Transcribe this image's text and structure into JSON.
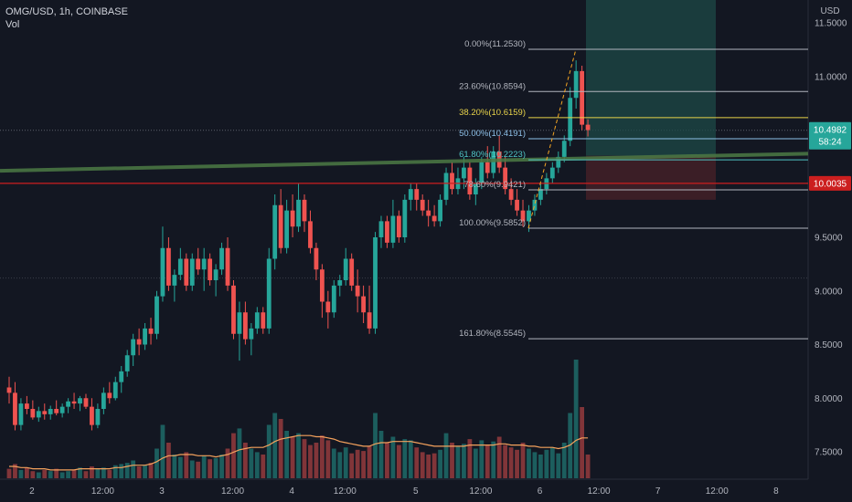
{
  "header": {
    "symbol": "OMG/USD",
    "timeframe": "1h",
    "exchange": "COINBASE",
    "indicator": "Vol"
  },
  "price_axis": {
    "currency": "USD",
    "ticks": [
      "11.5000",
      "11.0000",
      "10.5000",
      "10.0000",
      "9.5000",
      "9.0000",
      "8.5000",
      "8.0000",
      "7.5000"
    ]
  },
  "time_axis": {
    "ticks": [
      "2",
      "12:00",
      "3",
      "12:00",
      "4",
      "12:00",
      "5",
      "12:00",
      "6",
      "12:00",
      "7",
      "12:00",
      "8"
    ]
  },
  "fib_levels": [
    {
      "label": "0.00%(11.2530)",
      "price": 11.253,
      "color": "#b2b5be"
    },
    {
      "label": "23.60%(10.8594)",
      "price": 10.8594,
      "color": "#b2b5be"
    },
    {
      "label": "38.20%(10.6159)",
      "price": 10.6159,
      "color": "#e8d34a"
    },
    {
      "label": "50.00%(10.4191)",
      "price": 10.4191,
      "color": "#8ec0e8"
    },
    {
      "label": "61.80%(10.2223)",
      "price": 10.2223,
      "color": "#4fc3c3"
    },
    {
      "label": "78.60%(9.9421)",
      "price": 9.9421,
      "color": "#b2b5be"
    },
    {
      "label": "100.00%(9.5852)",
      "price": 9.5852,
      "color": "#b2b5be"
    },
    {
      "label": "161.80%(8.5545)",
      "price": 8.5545,
      "color": "#b2b5be"
    }
  ],
  "price_tags": {
    "current": {
      "price": "10.4982",
      "countdown": "58:24",
      "color": "#26a69a"
    },
    "support": {
      "price": "10.0035",
      "color": "#cc1f1f"
    }
  },
  "colors": {
    "up": "#26a69a",
    "down": "#ef5350",
    "volume_ma": "#f5a25d",
    "trend_line": "#4c7a45",
    "support_line": "#cc1f1f",
    "target_zone": "#1e4a47",
    "stop_zone": "#4a2228"
  },
  "chart_data": {
    "type": "candlestick",
    "interval": "1h",
    "symbol": "OMG/USD",
    "exchange": "COINBASE",
    "x_ticks": [
      "2",
      "12:00",
      "3",
      "12:00",
      "4",
      "12:00",
      "5",
      "12:00",
      "6",
      "12:00",
      "7",
      "12:00",
      "8"
    ],
    "y_ticks": [
      11.5,
      11.0,
      10.5,
      10.0,
      9.5,
      9.0,
      8.5,
      8.0,
      7.5
    ],
    "ylim": [
      7.22,
      11.65
    ],
    "last_price": 10.4982,
    "horizontal_levels": {
      "support": 10.0035
    },
    "trend_line": {
      "from": {
        "x": 0,
        "y": 10.12
      },
      "to": {
        "x": 148,
        "y": 10.28
      }
    },
    "fib_retracement": {
      "from_price": 9.5852,
      "to_price": 11.253
    },
    "position_zones": {
      "entry": 10.26,
      "target": 11.85,
      "stop": 9.85
    },
    "ohlc": [
      [
        8.1,
        8.2,
        7.95,
        8.05
      ],
      [
        8.05,
        8.15,
        7.7,
        7.75
      ],
      [
        7.75,
        8.0,
        7.7,
        7.95
      ],
      [
        7.95,
        8.02,
        7.85,
        7.9
      ],
      [
        7.9,
        7.98,
        7.8,
        7.82
      ],
      [
        7.82,
        7.92,
        7.78,
        7.88
      ],
      [
        7.88,
        7.95,
        7.8,
        7.85
      ],
      [
        7.85,
        7.93,
        7.8,
        7.9
      ],
      [
        7.9,
        7.98,
        7.84,
        7.86
      ],
      [
        7.86,
        7.95,
        7.82,
        7.92
      ],
      [
        7.92,
        8.0,
        7.86,
        7.97
      ],
      [
        7.97,
        8.05,
        7.9,
        7.95
      ],
      [
        7.95,
        8.02,
        7.88,
        8.0
      ],
      [
        8.0,
        8.04,
        7.9,
        7.92
      ],
      [
        7.92,
        8.0,
        7.7,
        7.75
      ],
      [
        7.75,
        7.95,
        7.72,
        7.9
      ],
      [
        7.9,
        8.1,
        7.85,
        8.05
      ],
      [
        8.05,
        8.15,
        7.95,
        8.0
      ],
      [
        8.0,
        8.2,
        7.98,
        8.15
      ],
      [
        8.15,
        8.3,
        8.05,
        8.25
      ],
      [
        8.25,
        8.45,
        8.2,
        8.4
      ],
      [
        8.4,
        8.6,
        8.3,
        8.55
      ],
      [
        8.55,
        8.65,
        8.4,
        8.5
      ],
      [
        8.5,
        8.7,
        8.45,
        8.65
      ],
      [
        8.65,
        8.75,
        8.5,
        8.6
      ],
      [
        8.6,
        9.0,
        8.55,
        8.95
      ],
      [
        8.95,
        9.6,
        8.9,
        9.4
      ],
      [
        9.4,
        9.5,
        9.0,
        9.05
      ],
      [
        9.05,
        9.2,
        8.9,
        9.15
      ],
      [
        9.15,
        9.4,
        9.1,
        9.3
      ],
      [
        9.3,
        9.35,
        9.0,
        9.05
      ],
      [
        9.05,
        9.35,
        9.0,
        9.3
      ],
      [
        9.3,
        9.4,
        9.15,
        9.2
      ],
      [
        9.2,
        9.4,
        9.0,
        9.3
      ],
      [
        9.3,
        9.35,
        9.05,
        9.1
      ],
      [
        9.1,
        9.25,
        8.95,
        9.2
      ],
      [
        9.2,
        9.45,
        9.15,
        9.4
      ],
      [
        9.4,
        9.5,
        9.0,
        9.05
      ],
      [
        9.05,
        9.1,
        8.55,
        8.6
      ],
      [
        8.6,
        8.9,
        8.35,
        8.8
      ],
      [
        8.8,
        8.9,
        8.5,
        8.55
      ],
      [
        8.55,
        8.7,
        8.4,
        8.65
      ],
      [
        8.65,
        8.85,
        8.6,
        8.8
      ],
      [
        8.8,
        8.85,
        8.6,
        8.65
      ],
      [
        8.65,
        9.4,
        8.6,
        9.3
      ],
      [
        9.3,
        9.9,
        9.2,
        9.8
      ],
      [
        9.8,
        9.95,
        9.35,
        9.4
      ],
      [
        9.4,
        9.85,
        9.35,
        9.75
      ],
      [
        9.75,
        9.9,
        9.5,
        9.6
      ],
      [
        9.6,
        10.0,
        9.55,
        9.85
      ],
      [
        9.85,
        9.9,
        9.55,
        9.65
      ],
      [
        9.65,
        9.75,
        9.35,
        9.4
      ],
      [
        9.4,
        9.45,
        9.1,
        9.2
      ],
      [
        9.2,
        9.25,
        8.75,
        8.9
      ],
      [
        8.9,
        9.0,
        8.65,
        8.8
      ],
      [
        8.8,
        9.1,
        8.75,
        9.05
      ],
      [
        9.05,
        9.15,
        8.95,
        9.1
      ],
      [
        9.1,
        9.4,
        9.05,
        9.3
      ],
      [
        9.3,
        9.35,
        9.0,
        9.05
      ],
      [
        9.05,
        9.2,
        8.8,
        8.95
      ],
      [
        8.95,
        9.05,
        8.7,
        8.8
      ],
      [
        8.8,
        9.05,
        8.6,
        8.65
      ],
      [
        8.65,
        9.55,
        8.6,
        9.5
      ],
      [
        9.5,
        9.7,
        9.4,
        9.65
      ],
      [
        9.65,
        9.7,
        9.4,
        9.45
      ],
      [
        9.45,
        9.85,
        9.4,
        9.7
      ],
      [
        9.7,
        9.75,
        9.45,
        9.5
      ],
      [
        9.5,
        9.9,
        9.45,
        9.85
      ],
      [
        9.85,
        10.0,
        9.75,
        9.95
      ],
      [
        9.95,
        10.0,
        9.75,
        9.85
      ],
      [
        9.85,
        9.9,
        9.7,
        9.75
      ],
      [
        9.75,
        9.85,
        9.6,
        9.7
      ],
      [
        9.7,
        9.8,
        9.6,
        9.65
      ],
      [
        9.65,
        9.9,
        9.6,
        9.85
      ],
      [
        9.85,
        10.15,
        9.8,
        10.1
      ],
      [
        10.1,
        10.2,
        9.9,
        9.95
      ],
      [
        9.95,
        10.15,
        9.9,
        10.05
      ],
      [
        10.05,
        10.25,
        9.95,
        10.15
      ],
      [
        10.15,
        10.2,
        9.85,
        9.9
      ],
      [
        9.9,
        10.05,
        9.8,
        10.0
      ],
      [
        10.0,
        10.25,
        9.95,
        10.2
      ],
      [
        10.2,
        10.35,
        10.05,
        10.1
      ],
      [
        10.1,
        10.35,
        10.05,
        10.3
      ],
      [
        10.3,
        10.45,
        10.1,
        10.15
      ],
      [
        10.15,
        10.25,
        9.9,
        9.95
      ],
      [
        9.95,
        10.05,
        9.8,
        9.85
      ],
      [
        9.85,
        9.95,
        9.7,
        9.75
      ],
      [
        9.75,
        9.85,
        9.6,
        9.65
      ],
      [
        9.65,
        9.8,
        9.55,
        9.75
      ],
      [
        9.75,
        9.9,
        9.7,
        9.85
      ],
      [
        9.85,
        10.0,
        9.8,
        9.95
      ],
      [
        9.95,
        10.1,
        9.9,
        10.05
      ],
      [
        10.05,
        10.2,
        10.0,
        10.15
      ],
      [
        10.15,
        10.3,
        10.1,
        10.25
      ],
      [
        10.25,
        10.45,
        10.2,
        10.4
      ],
      [
        10.4,
        10.9,
        10.35,
        10.8
      ],
      [
        10.8,
        11.15,
        10.7,
        11.05
      ],
      [
        11.05,
        11.1,
        10.5,
        10.55
      ],
      [
        10.55,
        10.6,
        10.44,
        10.5
      ]
    ],
    "volume": [
      0.08,
      0.12,
      0.07,
      0.09,
      0.06,
      0.05,
      0.07,
      0.06,
      0.08,
      0.05,
      0.06,
      0.07,
      0.09,
      0.06,
      0.1,
      0.08,
      0.09,
      0.07,
      0.11,
      0.12,
      0.13,
      0.15,
      0.1,
      0.11,
      0.13,
      0.25,
      0.45,
      0.3,
      0.2,
      0.18,
      0.22,
      0.15,
      0.14,
      0.19,
      0.16,
      0.17,
      0.2,
      0.25,
      0.38,
      0.42,
      0.3,
      0.25,
      0.22,
      0.2,
      0.45,
      0.55,
      0.5,
      0.4,
      0.35,
      0.38,
      0.33,
      0.28,
      0.3,
      0.36,
      0.32,
      0.25,
      0.22,
      0.26,
      0.21,
      0.24,
      0.23,
      0.27,
      0.55,
      0.4,
      0.3,
      0.35,
      0.28,
      0.33,
      0.32,
      0.26,
      0.22,
      0.2,
      0.21,
      0.24,
      0.38,
      0.3,
      0.27,
      0.29,
      0.33,
      0.25,
      0.32,
      0.28,
      0.31,
      0.35,
      0.28,
      0.26,
      0.24,
      0.3,
      0.25,
      0.22,
      0.2,
      0.24,
      0.26,
      0.21,
      0.3,
      0.55,
      1.0,
      0.6,
      0.2
    ],
    "volume_ma": [
      0.1,
      0.1,
      0.09,
      0.09,
      0.08,
      0.08,
      0.08,
      0.07,
      0.07,
      0.07,
      0.07,
      0.07,
      0.08,
      0.08,
      0.08,
      0.08,
      0.08,
      0.08,
      0.09,
      0.09,
      0.1,
      0.11,
      0.11,
      0.11,
      0.12,
      0.14,
      0.17,
      0.19,
      0.19,
      0.2,
      0.2,
      0.2,
      0.19,
      0.19,
      0.19,
      0.18,
      0.19,
      0.2,
      0.22,
      0.24,
      0.25,
      0.26,
      0.26,
      0.26,
      0.28,
      0.31,
      0.33,
      0.34,
      0.35,
      0.36,
      0.36,
      0.36,
      0.35,
      0.35,
      0.34,
      0.33,
      0.31,
      0.3,
      0.29,
      0.28,
      0.27,
      0.27,
      0.29,
      0.3,
      0.3,
      0.31,
      0.31,
      0.31,
      0.31,
      0.3,
      0.29,
      0.28,
      0.27,
      0.27,
      0.27,
      0.27,
      0.27,
      0.27,
      0.28,
      0.28,
      0.28,
      0.28,
      0.28,
      0.29,
      0.29,
      0.28,
      0.28,
      0.28,
      0.27,
      0.27,
      0.26,
      0.26,
      0.26,
      0.25,
      0.26,
      0.28,
      0.32,
      0.34,
      0.34
    ]
  }
}
